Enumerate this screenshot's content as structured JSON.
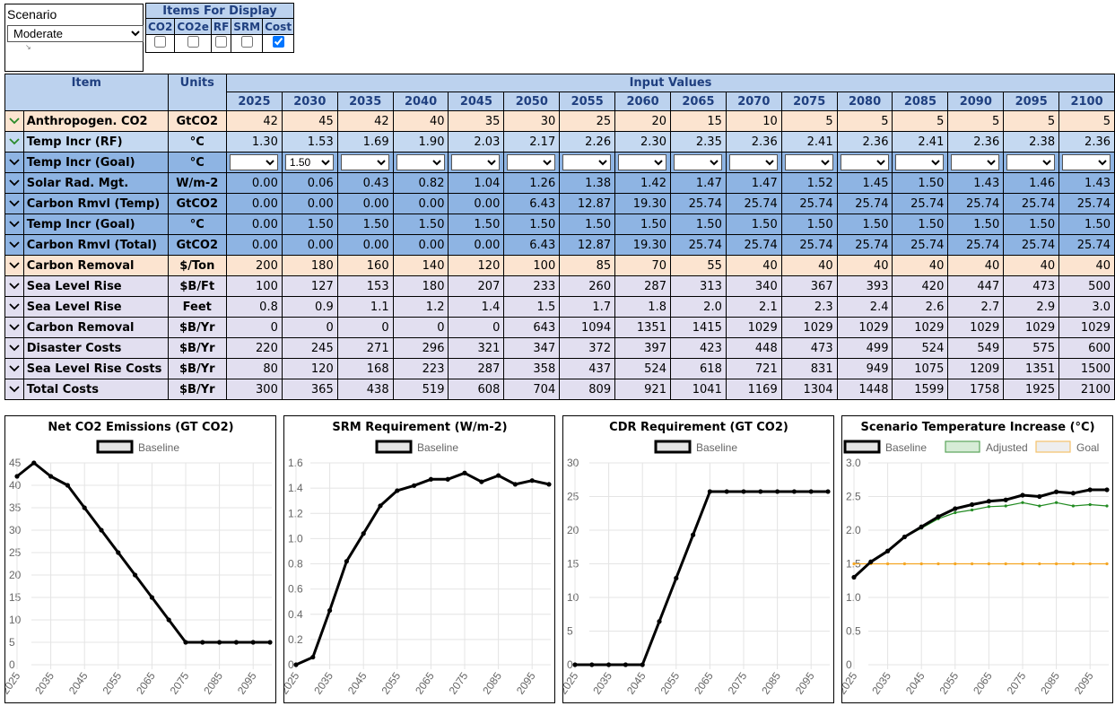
{
  "scenario": {
    "label": "Scenario",
    "selected": "Moderate",
    "options": [
      "Moderate"
    ]
  },
  "display": {
    "title": "Items For Display",
    "items": [
      {
        "label": "CO2",
        "checked": false
      },
      {
        "label": "CO2e",
        "checked": false
      },
      {
        "label": "RF",
        "checked": false
      },
      {
        "label": "SRM",
        "checked": false
      },
      {
        "label": "Cost",
        "checked": true
      }
    ]
  },
  "table": {
    "item_header": "Item",
    "units_header": "Units",
    "input_header": "Input Values",
    "years": [
      "2025",
      "2030",
      "2035",
      "2040",
      "2045",
      "2050",
      "2055",
      "2060",
      "2065",
      "2070",
      "2075",
      "2080",
      "2085",
      "2090",
      "2095",
      "2100"
    ],
    "rows": [
      {
        "name": "Anthropogen. CO2",
        "unit": "GtCO2",
        "style": "peach",
        "chev": "green",
        "values": [
          "42",
          "45",
          "42",
          "40",
          "35",
          "30",
          "25",
          "20",
          "15",
          "10",
          "5",
          "5",
          "5",
          "5",
          "5",
          "5"
        ]
      },
      {
        "name": "Temp Incr (RF)",
        "unit": "°C",
        "style": "light",
        "chev": "green",
        "values": [
          "1.30",
          "1.53",
          "1.69",
          "1.90",
          "2.03",
          "2.17",
          "2.26",
          "2.30",
          "2.35",
          "2.36",
          "2.41",
          "2.36",
          "2.41",
          "2.36",
          "2.38",
          "2.36"
        ]
      },
      {
        "name": "Temp Incr (Goal)",
        "unit": "°C",
        "style": "mid",
        "chev": "black",
        "select": true,
        "values": [
          "",
          "1.50",
          "",
          "",
          "",
          "",
          "",
          "",
          "",
          "",
          "",
          "",
          "",
          "",
          "",
          ""
        ]
      },
      {
        "name": "Solar Rad. Mgt.",
        "unit": "W/m-2",
        "style": "mid",
        "chev": "black",
        "values": [
          "0.00",
          "0.06",
          "0.43",
          "0.82",
          "1.04",
          "1.26",
          "1.38",
          "1.42",
          "1.47",
          "1.47",
          "1.52",
          "1.45",
          "1.50",
          "1.43",
          "1.46",
          "1.43"
        ]
      },
      {
        "name": "Carbon Rmvl (Temp)",
        "unit": "GtCO2",
        "style": "mid",
        "chev": "black",
        "values": [
          "0.00",
          "0.00",
          "0.00",
          "0.00",
          "0.00",
          "6.43",
          "12.87",
          "19.30",
          "25.74",
          "25.74",
          "25.74",
          "25.74",
          "25.74",
          "25.74",
          "25.74",
          "25.74"
        ]
      },
      {
        "name": "Temp Incr (Goal)",
        "unit": "°C",
        "style": "mid",
        "chev": "black",
        "values": [
          "0.00",
          "1.50",
          "1.50",
          "1.50",
          "1.50",
          "1.50",
          "1.50",
          "1.50",
          "1.50",
          "1.50",
          "1.50",
          "1.50",
          "1.50",
          "1.50",
          "1.50",
          "1.50"
        ]
      },
      {
        "name": "Carbon Rmvl (Total)",
        "unit": "GtCO2",
        "style": "mid",
        "chev": "black",
        "values": [
          "0.00",
          "0.00",
          "0.00",
          "0.00",
          "0.00",
          "6.43",
          "12.87",
          "19.30",
          "25.74",
          "25.74",
          "25.74",
          "25.74",
          "25.74",
          "25.74",
          "25.74",
          "25.74"
        ]
      },
      {
        "name": "Carbon Removal",
        "unit": "$/Ton",
        "style": "peach",
        "chev": "black",
        "values": [
          "200",
          "180",
          "160",
          "140",
          "120",
          "100",
          "85",
          "70",
          "55",
          "40",
          "40",
          "40",
          "40",
          "40",
          "40",
          "40"
        ]
      },
      {
        "name": "Sea Level Rise",
        "unit": "$B/Ft",
        "style": "lav",
        "chev": "black",
        "values": [
          "100",
          "127",
          "153",
          "180",
          "207",
          "233",
          "260",
          "287",
          "313",
          "340",
          "367",
          "393",
          "420",
          "447",
          "473",
          "500"
        ]
      },
      {
        "name": "Sea Level Rise",
        "unit": "Feet",
        "style": "lav",
        "chev": "black",
        "values": [
          "0.8",
          "0.9",
          "1.1",
          "1.2",
          "1.4",
          "1.5",
          "1.7",
          "1.8",
          "2.0",
          "2.1",
          "2.3",
          "2.4",
          "2.6",
          "2.7",
          "2.9",
          "3.0"
        ]
      },
      {
        "name": "Carbon Removal",
        "unit": "$B/Yr",
        "style": "lav",
        "chev": "black",
        "values": [
          "0",
          "0",
          "0",
          "0",
          "0",
          "643",
          "1094",
          "1351",
          "1415",
          "1029",
          "1029",
          "1029",
          "1029",
          "1029",
          "1029",
          "1029"
        ]
      },
      {
        "name": "Disaster Costs",
        "unit": "$B/Yr",
        "style": "lav",
        "chev": "black",
        "values": [
          "220",
          "245",
          "271",
          "296",
          "321",
          "347",
          "372",
          "397",
          "423",
          "448",
          "473",
          "499",
          "524",
          "549",
          "575",
          "600"
        ]
      },
      {
        "name": "Sea Level Rise Costs",
        "unit": "$B/Yr",
        "style": "lav",
        "chev": "black",
        "values": [
          "80",
          "120",
          "168",
          "223",
          "287",
          "358",
          "437",
          "524",
          "618",
          "721",
          "831",
          "949",
          "1075",
          "1209",
          "1351",
          "1500"
        ]
      },
      {
        "name": "Total Costs",
        "unit": "$B/Yr",
        "style": "lav",
        "chev": "black",
        "values": [
          "300",
          "365",
          "438",
          "519",
          "608",
          "704",
          "809",
          "921",
          "1041",
          "1169",
          "1304",
          "1448",
          "1599",
          "1758",
          "1925",
          "2100"
        ]
      }
    ]
  },
  "colors": {
    "baseline": "#000000",
    "adjusted": "#228b22",
    "goal": "#f5a623",
    "grid": "#e4e4e4"
  },
  "chart_data": [
    {
      "type": "line",
      "title": "Net CO2 Emissions (GT CO2)",
      "x": [
        2025,
        2030,
        2035,
        2040,
        2045,
        2050,
        2055,
        2060,
        2065,
        2070,
        2075,
        2080,
        2085,
        2090,
        2095,
        2100
      ],
      "xticks": [
        "2025",
        "2035",
        "2045",
        "2055",
        "2065",
        "2075",
        "2085",
        "2095"
      ],
      "yticks": [
        "0",
        "5",
        "10",
        "15",
        "20",
        "25",
        "30",
        "35",
        "40",
        "45"
      ],
      "ylim": [
        0,
        45
      ],
      "series": [
        {
          "name": "Baseline",
          "values": [
            42,
            45,
            42,
            40,
            35,
            30,
            25,
            20,
            15,
            10,
            5,
            5,
            5,
            5,
            5,
            5
          ]
        }
      ]
    },
    {
      "type": "line",
      "title": "SRM Requirement (W/m-2)",
      "x": [
        2025,
        2030,
        2035,
        2040,
        2045,
        2050,
        2055,
        2060,
        2065,
        2070,
        2075,
        2080,
        2085,
        2090,
        2095,
        2100
      ],
      "xticks": [
        "2025",
        "2035",
        "2045",
        "2055",
        "2065",
        "2075",
        "2085",
        "2095"
      ],
      "yticks": [
        "0",
        "0.2",
        "0.4",
        "0.6",
        "0.8",
        "1.0",
        "1.2",
        "1.4",
        "1.6"
      ],
      "ylim": [
        0,
        1.6
      ],
      "series": [
        {
          "name": "Baseline",
          "values": [
            0.0,
            0.06,
            0.43,
            0.82,
            1.04,
            1.26,
            1.38,
            1.42,
            1.47,
            1.47,
            1.52,
            1.45,
            1.5,
            1.43,
            1.46,
            1.43
          ]
        }
      ]
    },
    {
      "type": "line",
      "title": "CDR Requirement (GT CO2)",
      "x": [
        2025,
        2030,
        2035,
        2040,
        2045,
        2050,
        2055,
        2060,
        2065,
        2070,
        2075,
        2080,
        2085,
        2090,
        2095,
        2100
      ],
      "xticks": [
        "2025",
        "2035",
        "2045",
        "2055",
        "2065",
        "2075",
        "2085",
        "2095"
      ],
      "yticks": [
        "0",
        "5",
        "10",
        "15",
        "20",
        "25",
        "30"
      ],
      "ylim": [
        0,
        30
      ],
      "series": [
        {
          "name": "Baseline",
          "values": [
            0,
            0,
            0,
            0,
            0,
            6.43,
            12.87,
            19.3,
            25.74,
            25.74,
            25.74,
            25.74,
            25.74,
            25.74,
            25.74,
            25.74
          ]
        }
      ]
    },
    {
      "type": "line",
      "title": "Scenario Temperature Increase (°C)",
      "x": [
        2025,
        2030,
        2035,
        2040,
        2045,
        2050,
        2055,
        2060,
        2065,
        2070,
        2075,
        2080,
        2085,
        2090,
        2095,
        2100
      ],
      "xticks": [
        "2025",
        "2035",
        "2045",
        "2055",
        "2065",
        "2075",
        "2085",
        "2095"
      ],
      "yticks": [
        "0",
        "0.5",
        "1.0",
        "1.5",
        "2.0",
        "2.5",
        "3.0"
      ],
      "ylim": [
        0,
        3.0
      ],
      "series": [
        {
          "name": "Baseline",
          "values": [
            1.3,
            1.53,
            1.69,
            1.9,
            2.05,
            2.2,
            2.32,
            2.38,
            2.43,
            2.45,
            2.52,
            2.5,
            2.57,
            2.55,
            2.6,
            2.6
          ]
        },
        {
          "name": "Adjusted",
          "values": [
            1.3,
            1.53,
            1.69,
            1.9,
            2.03,
            2.17,
            2.26,
            2.3,
            2.35,
            2.36,
            2.41,
            2.36,
            2.41,
            2.36,
            2.38,
            2.36
          ]
        },
        {
          "name": "Goal",
          "values": [
            1.5,
            1.5,
            1.5,
            1.5,
            1.5,
            1.5,
            1.5,
            1.5,
            1.5,
            1.5,
            1.5,
            1.5,
            1.5,
            1.5,
            1.5,
            1.5
          ]
        }
      ]
    }
  ]
}
